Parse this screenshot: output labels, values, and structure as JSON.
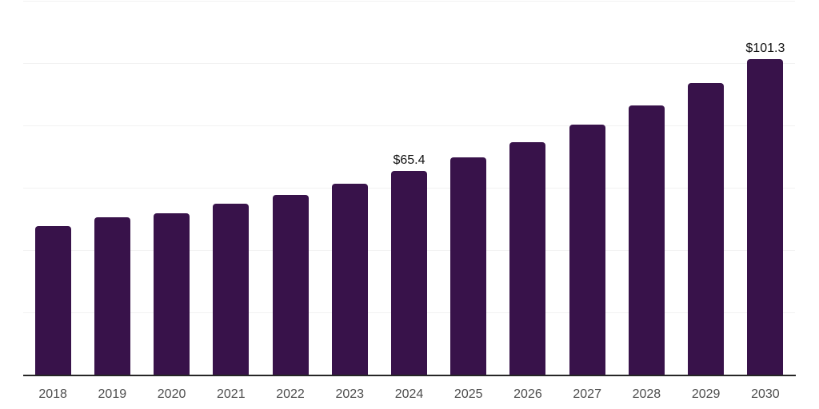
{
  "chart_data": {
    "type": "bar",
    "title": "",
    "xlabel": "",
    "ylabel": "",
    "categories": [
      "2018",
      "2019",
      "2020",
      "2021",
      "2022",
      "2023",
      "2024",
      "2025",
      "2026",
      "2027",
      "2028",
      "2029",
      "2030"
    ],
    "values": [
      47.8,
      50.5,
      51.9,
      54.8,
      57.7,
      61.4,
      65.4,
      69.8,
      74.5,
      80.2,
      86.4,
      93.6,
      101.3
    ],
    "data_labels": [
      "",
      "",
      "",
      "",
      "",
      "",
      "$65.4",
      "",
      "",
      "",
      "",
      "",
      "$101.3"
    ],
    "ylim": [
      0,
      120
    ],
    "grid_interval": 20,
    "grid": "horizontal-only",
    "legend": "none",
    "colors": {
      "bar": "#38124A",
      "gridline": "#f2f2f2",
      "axis_line": "#262626",
      "tick_label": "#4d4d4d",
      "data_label": "#111111",
      "background": "#ffffff"
    }
  }
}
